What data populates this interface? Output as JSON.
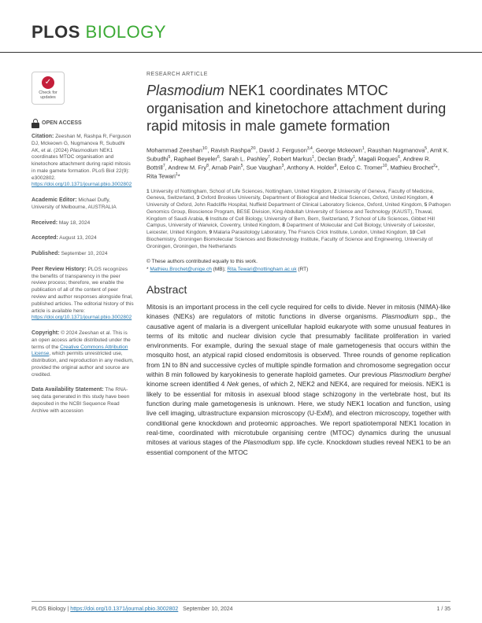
{
  "journal": {
    "plos": "PLOS",
    "bio": "BIOLOGY"
  },
  "article_type": "RESEARCH ARTICLE",
  "title_html": "<em>Plasmodium</em> NEK1 coordinates MTOC organisation and kinetochore attachment during rapid mitosis in male gamete formation",
  "authors_html": "Mohammad Zeeshan<sup>1©</sup>, Ravish Rashpa<sup>2©</sup>, David J. Ferguson<sup>3,4</sup>, George Mckeown<sup>1</sup>, Raushan Nugmanova<sup>5</sup>, Amit K. Subudhi<sup>5</sup>, Raphael Beyeler<sup>6</sup>, Sarah L. Pashley<sup>7</sup>, Robert Markus<sup>1</sup>, Declan Brady<sup>1</sup>, Magali Roques<sup>6</sup>, Andrew R. Bottrill<sup>7</sup>, Andrew M. Fry<sup>8</sup>, Arnab Pain<sup>5</sup>, Sue Vaughan<sup>3</sup>, Anthony A. Holder<sup>9</sup>, Eelco C. Tromer<sup>10</sup>, Mathieu Brochet<sup>2</sup>*, Rita Tewari<sup>1</sup>*",
  "affiliations_html": "<b>1</b> University of Nottingham, School of Life Sciences, Nottingham, United Kingdom, <b>2</b> University of Geneva, Faculty of Medicine, Geneva, Switzerland, <b>3</b> Oxford Brookes University, Department of Biological and Medical Sciences, Oxford, United Kingdom, <b>4</b> University of Oxford, John Radcliffe Hospital, Nuffield Department of Clinical Laboratory Science, Oxford, United Kingdom, <b>5</b> Pathogen Genomics Group, Bioscience Program, BESE Division, King Abdullah University of Science and Technology (KAUST), Thuwal, Kingdom of Saudi Arabia, <b>6</b> Institute of Cell Biology, University of Bern, Bern, Switzerland, <b>7</b> School of Life Sciences, Gibbet Hill Campus, University of Warwick, Coventry, United Kingdom, <b>8</b> Department of Molecular and Cell Biology, University of Leicester, Leicester, United Kingdom, <b>9</b> Malaria Parasitology Laboratory, The Francis Crick Institute, London, United Kingdom, <b>10</b> Cell Biochemistry, Groningen Biomolecular Sciences and Biotechnology Institute, Faculty of Science and Engineering, University of Groningen, Groningen, the Netherlands",
  "equal_contrib": "These authors contributed equally to this work.",
  "corresponding_html": "<a>Mathieu.Brochet@unige.ch</a> (MB); <a>Rita.Tewari@nottingham.ac.uk</a> (RT)",
  "abstract_heading": "Abstract",
  "abstract_html": "Mitosis is an important process in the cell cycle required for cells to divide. Never in mitosis (NIMA)-like kinases (NEKs) are regulators of mitotic functions in diverse organisms. <em>Plasmodium</em> spp., the causative agent of malaria is a divergent unicellular haploid eukaryote with some unusual features in terms of its mitotic and nuclear division cycle that presumably facilitate proliferation in varied environments. For example, during the sexual stage of male gametogenesis that occurs within the mosquito host, an atypical rapid closed endomitosis is observed. Three rounds of genome replication from 1N to 8N and successive cycles of multiple spindle formation and chromosome segregation occur within 8 min followed by karyokinesis to generate haploid gametes. Our previous <em>Plasmodium berghei</em> kinome screen identified 4 <em>Nek</em> genes, of which 2, NEK2 and NEK4, are required for meiosis. NEK1 is likely to be essential for mitosis in asexual blood stage schizogony in the vertebrate host, but its function during male gametogenesis is unknown. Here, we study NEK1 location and function, using live cell imaging, ultrastructure expansion microscopy (U-ExM), and electron microscopy, together with conditional gene knockdown and proteomic approaches. We report spatiotemporal NEK1 location in real-time, coordinated with microtubule organising centre (MTOC) dynamics during the unusual mitoses at various stages of the <em>Plasmodium</em> spp. life cycle. Knockdown studies reveal NEK1 to be an essential component of the MTOC",
  "sidebar": {
    "check_label": "Check for updates",
    "open_access": "OPEN ACCESS",
    "citation_label": "Citation:",
    "citation_text": "Zeeshan M, Rashpa R, Ferguson DJ, Mckeown G, Nugmanova R, Subudhi AK, et al. (2024) <em>Plasmodium</em> NEK1 coordinates MTOC organisation and kinetochore attachment during rapid mitosis in male gamete formation. PLoS Biol 22(9): e3002802. ",
    "citation_link": "https://doi.org/10.1371/journal.pbio.3002802",
    "editor_label": "Academic Editor:",
    "editor_text": "Michael Duffy, University of Melbourne, AUSTRALIA",
    "received_label": "Received:",
    "received_text": "May 18, 2024",
    "accepted_label": "Accepted:",
    "accepted_text": "August 13, 2024",
    "published_label": "Published:",
    "published_text": "September 10, 2024",
    "peer_label": "Peer Review History:",
    "peer_text": "PLOS recognizes the benefits of transparency in the peer review process; therefore, we enable the publication of all of the content of peer review and author responses alongside final, published articles. The editorial history of this article is available here: ",
    "peer_link": "https://doi.org/10.1371/journal.pbio.3002802",
    "copyright_label": "Copyright:",
    "copyright_text": "© 2024 Zeeshan et al. This is an open access article distributed under the terms of the ",
    "copyright_link": "Creative Commons Attribution License",
    "copyright_text2": ", which permits unrestricted use, distribution, and reproduction in any medium, provided the original author and source are credited.",
    "data_label": "Data Availability Statement:",
    "data_text": "The RNA-seq data generated in this study have been deposited in the NCBI Sequence Read Archive with accession"
  },
  "footer": {
    "left_html": "PLOS Biology | <a>https://doi.org/10.1371/journal.pbio.3002802</a>&nbsp;&nbsp;&nbsp;September 10, 2024",
    "right": "1 / 35"
  }
}
